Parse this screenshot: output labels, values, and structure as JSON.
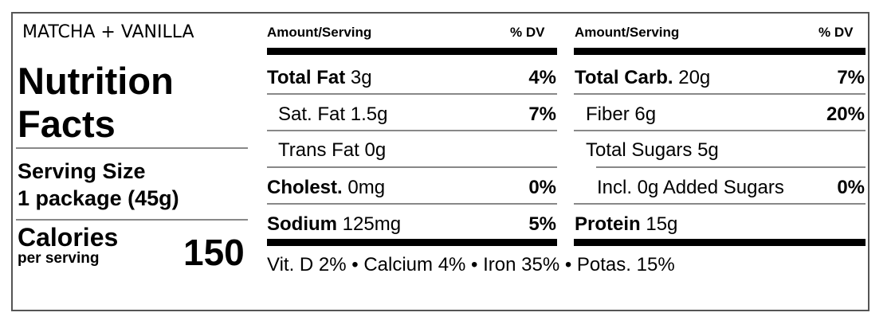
{
  "brand": "MATCHA + VANILLA",
  "title_line1": "Nutrition",
  "title_line2": "Facts",
  "serving_size_label": "Serving Size",
  "serving_size_value": "1 package (45g)",
  "calories_label": "Calories",
  "calories_sub": "per serving",
  "calories_value": "150",
  "header": {
    "amount": "Amount/Serving",
    "dv": "% DV"
  },
  "left_rows": [
    {
      "name": "Total Fat",
      "amount": "3g",
      "dv": "4%"
    },
    {
      "name": "Sat. Fat",
      "amount": "1.5g",
      "dv": "7%"
    },
    {
      "name": "Trans Fat",
      "amount": "0g",
      "dv": ""
    },
    {
      "name": "Cholest.",
      "amount": "0mg",
      "dv": "0%"
    },
    {
      "name": "Sodium",
      "amount": "125mg",
      "dv": "5%"
    }
  ],
  "right_rows": [
    {
      "name": "Total Carb.",
      "amount": "20g",
      "dv": "7%"
    },
    {
      "name": "Fiber",
      "amount": "6g",
      "dv": "20%"
    },
    {
      "name": "Total Sugars",
      "amount": "5g",
      "dv": ""
    },
    {
      "name": "Incl. 0g Added Sugars",
      "amount": "",
      "dv": "0%"
    },
    {
      "name": "Protein",
      "amount": "15g",
      "dv": ""
    }
  ],
  "footer": "Vit. D 2% • Calcium 4% • Iron 35% • Potas. 15%"
}
